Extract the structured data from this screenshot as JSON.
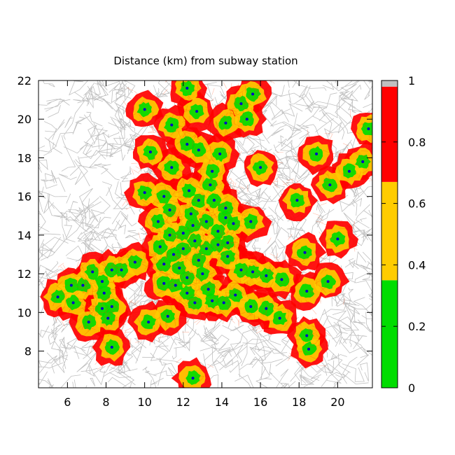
{
  "chart_data": {
    "type": "heatmap",
    "title": "Distance (km) from subway station",
    "xlabel": "",
    "ylabel": "",
    "xlim": [
      4.5,
      21.8
    ],
    "ylim": [
      6.1,
      22
    ],
    "x_ticks": [
      6,
      8,
      10,
      12,
      14,
      16,
      18,
      20
    ],
    "y_ticks": [
      8,
      10,
      12,
      14,
      16,
      18,
      20,
      22
    ],
    "colorbar": {
      "range": [
        0,
        1
      ],
      "ticks": [
        0,
        0.2,
        0.4,
        0.6,
        0.8,
        1
      ],
      "tick_labels": [
        "0",
        "0.2",
        "0.4",
        "0.6",
        "0.8",
        "1"
      ],
      "bands": [
        {
          "from": 0,
          "to": 0.35,
          "color": "#00dd00"
        },
        {
          "from": 0.35,
          "to": 0.67,
          "color": "#ffcc00"
        },
        {
          "from": 0.67,
          "to": 0.98,
          "color": "#ff0000"
        },
        {
          "from": 0.98,
          "to": 1.0,
          "color": "#c0c0c0"
        }
      ]
    },
    "background_network_color": "#c0c0c0",
    "station_color": "#0000cc",
    "stations": [
      [
        6.2,
        11.4
      ],
      [
        6.8,
        11.4
      ],
      [
        7.3,
        12.1
      ],
      [
        7.8,
        11.6
      ],
      [
        8.3,
        12.2
      ],
      [
        8.8,
        12.2
      ],
      [
        9.5,
        12.6
      ],
      [
        5.5,
        10.8
      ],
      [
        6.3,
        10.5
      ],
      [
        7.1,
        9.5
      ],
      [
        7.8,
        10.2
      ],
      [
        8.3,
        10.3
      ],
      [
        8.1,
        9.7
      ],
      [
        7.9,
        11.0
      ],
      [
        8.3,
        8.2
      ],
      [
        10.2,
        9.5
      ],
      [
        11.2,
        9.8
      ],
      [
        12.5,
        6.6
      ],
      [
        12.6,
        10.5
      ],
      [
        13.5,
        10.6
      ],
      [
        14.1,
        10.5
      ],
      [
        14.7,
        10.9
      ],
      [
        15.5,
        10.3
      ],
      [
        16.3,
        10.2
      ],
      [
        17.0,
        9.7
      ],
      [
        15.6,
        12.1
      ],
      [
        16.3,
        11.9
      ],
      [
        17.1,
        11.7
      ],
      [
        18.4,
        11.1
      ],
      [
        18.4,
        8.8
      ],
      [
        18.5,
        8.1
      ],
      [
        19.5,
        11.6
      ],
      [
        18.3,
        13.1
      ],
      [
        20.0,
        13.8
      ],
      [
        17.9,
        15.8
      ],
      [
        19.6,
        16.6
      ],
      [
        20.6,
        17.3
      ],
      [
        21.3,
        17.8
      ],
      [
        18.9,
        18.2
      ],
      [
        16.0,
        17.5
      ],
      [
        15.3,
        20.0
      ],
      [
        15.0,
        20.8
      ],
      [
        15.6,
        21.3
      ],
      [
        14.2,
        19.8
      ],
      [
        12.7,
        20.4
      ],
      [
        12.2,
        21.6
      ],
      [
        10.0,
        20.5
      ],
      [
        11.4,
        19.7
      ],
      [
        11.4,
        17.5
      ],
      [
        10.3,
        18.3
      ],
      [
        12.2,
        18.7
      ],
      [
        12.8,
        18.4
      ],
      [
        13.9,
        18.2
      ],
      [
        13.5,
        17.3
      ],
      [
        10.0,
        16.2
      ],
      [
        11.0,
        16.0
      ],
      [
        12.3,
        16.3
      ],
      [
        12.8,
        15.8
      ],
      [
        13.6,
        15.8
      ],
      [
        14.2,
        15.4
      ],
      [
        14.6,
        14.6
      ],
      [
        15.5,
        14.7
      ],
      [
        10.7,
        14.7
      ],
      [
        11.3,
        14.0
      ],
      [
        12.0,
        14.1
      ],
      [
        12.5,
        14.5
      ],
      [
        13.2,
        14.7
      ],
      [
        13.8,
        14.2
      ],
      [
        10.8,
        13.4
      ],
      [
        11.5,
        13.0
      ],
      [
        12.0,
        13.3
      ],
      [
        12.6,
        13.7
      ],
      [
        13.2,
        13.3
      ],
      [
        13.8,
        13.5
      ],
      [
        14.3,
        13.6
      ],
      [
        11.0,
        12.5
      ],
      [
        11.8,
        12.3
      ],
      [
        12.2,
        11.8
      ],
      [
        13.0,
        12.0
      ],
      [
        14.3,
        12.9
      ],
      [
        15.0,
        12.2
      ],
      [
        11.0,
        11.5
      ],
      [
        11.6,
        11.4
      ],
      [
        12.2,
        11.0
      ],
      [
        13.3,
        11.2
      ],
      [
        21.6,
        19.5
      ],
      [
        12.8,
        12.7
      ],
      [
        11.3,
        15.3
      ],
      [
        12.4,
        15.1
      ],
      [
        13.4,
        16.6
      ],
      [
        14.2,
        14.9
      ]
    ]
  }
}
